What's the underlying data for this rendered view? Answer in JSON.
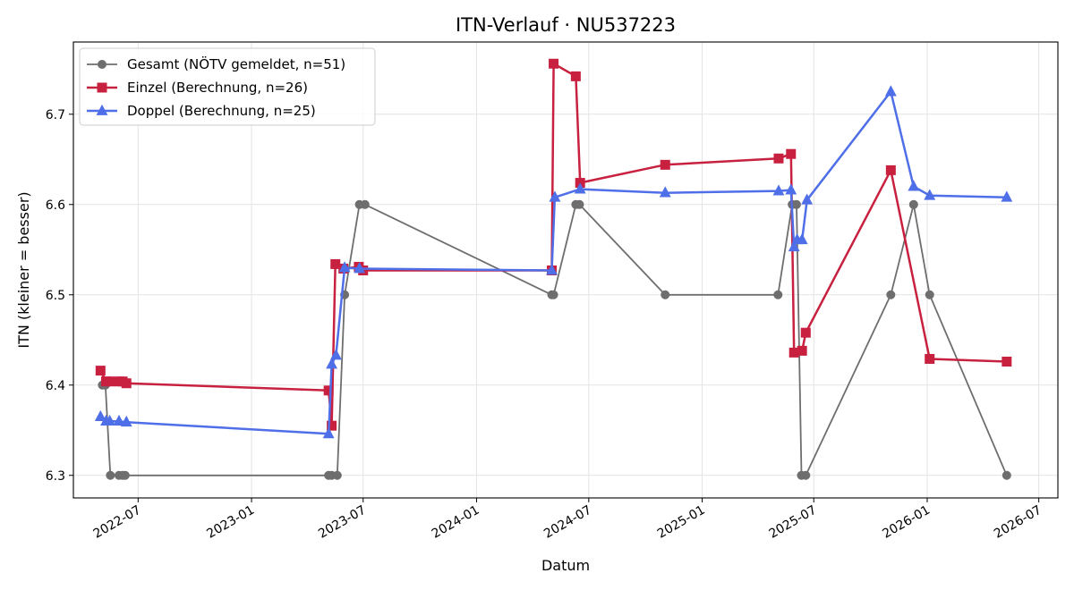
{
  "chart_data": {
    "type": "line",
    "title": "ITN-Verlauf · NU537223",
    "xlabel": "Datum",
    "ylabel": "ITN  (kleiner = besser)",
    "x_axis": "date",
    "xlim": [
      "2022-03-18",
      "2026-08-01"
    ],
    "ylim": [
      6.275,
      6.78
    ],
    "x_ticks": [
      {
        "date": "2022-07-01",
        "label": "2022-07"
      },
      {
        "date": "2023-01-01",
        "label": "2023-01"
      },
      {
        "date": "2023-07-01",
        "label": "2023-07"
      },
      {
        "date": "2024-01-01",
        "label": "2024-01"
      },
      {
        "date": "2024-07-01",
        "label": "2024-07"
      },
      {
        "date": "2025-01-01",
        "label": "2025-01"
      },
      {
        "date": "2025-07-01",
        "label": "2025-07"
      },
      {
        "date": "2026-01-01",
        "label": "2026-01"
      },
      {
        "date": "2026-07-01",
        "label": "2026-07"
      }
    ],
    "y_ticks": [
      {
        "value": 6.3,
        "label": "6.3"
      },
      {
        "value": 6.4,
        "label": "6.4"
      },
      {
        "value": 6.5,
        "label": "6.5"
      },
      {
        "value": 6.6,
        "label": "6.6"
      },
      {
        "value": 6.7,
        "label": "6.7"
      }
    ],
    "grid": true,
    "legend_position": "top-left",
    "series": [
      {
        "name": "Gesamt (NÖTV gemeldet, n=51)",
        "color": "#6e6e6e",
        "marker": "circle",
        "points": [
          [
            "2022-05-04",
            6.4
          ],
          [
            "2022-05-09",
            6.4
          ],
          [
            "2022-05-17",
            6.3
          ],
          [
            "2022-05-31",
            6.3
          ],
          [
            "2022-06-06",
            6.3
          ],
          [
            "2022-06-10",
            6.3
          ],
          [
            "2023-05-06",
            6.3
          ],
          [
            "2023-05-11",
            6.3
          ],
          [
            "2023-05-20",
            6.3
          ],
          [
            "2023-06-01",
            6.5
          ],
          [
            "2023-06-25",
            6.6
          ],
          [
            "2023-07-04",
            6.6
          ],
          [
            "2024-05-02",
            6.5
          ],
          [
            "2024-05-05",
            6.5
          ],
          [
            "2024-06-10",
            6.6
          ],
          [
            "2024-06-16",
            6.6
          ],
          [
            "2024-11-02",
            6.5
          ],
          [
            "2025-05-04",
            6.5
          ],
          [
            "2025-05-27",
            6.6
          ],
          [
            "2025-06-03",
            6.6
          ],
          [
            "2025-06-11",
            6.3
          ],
          [
            "2025-06-18",
            6.3
          ],
          [
            "2025-11-03",
            6.5
          ],
          [
            "2025-12-10",
            6.6
          ],
          [
            "2026-01-05",
            6.5
          ],
          [
            "2026-05-10",
            6.3
          ]
        ]
      },
      {
        "name": "Einzel (Berechnung, n=26)",
        "color": "#c8203f",
        "marker": "square",
        "points": [
          [
            "2022-05-01",
            6.416
          ],
          [
            "2022-05-10",
            6.404
          ],
          [
            "2022-05-16",
            6.404
          ],
          [
            "2022-05-31",
            6.404
          ],
          [
            "2022-06-06",
            6.404
          ],
          [
            "2022-06-12",
            6.402
          ],
          [
            "2023-05-06",
            6.394
          ],
          [
            "2023-05-11",
            6.355
          ],
          [
            "2023-05-17",
            6.534
          ],
          [
            "2023-05-30",
            6.529
          ],
          [
            "2023-06-24",
            6.531
          ],
          [
            "2023-07-01",
            6.527
          ],
          [
            "2024-05-02",
            6.527
          ],
          [
            "2024-05-05",
            6.756
          ],
          [
            "2024-06-10",
            6.742
          ],
          [
            "2024-06-17",
            6.624
          ],
          [
            "2024-11-02",
            6.644
          ],
          [
            "2025-05-05",
            6.651
          ],
          [
            "2025-05-25",
            6.656
          ],
          [
            "2025-05-30",
            6.436
          ],
          [
            "2025-06-12",
            6.438
          ],
          [
            "2025-06-18",
            6.458
          ],
          [
            "2025-11-03",
            6.638
          ],
          [
            "2026-01-05",
            6.429
          ],
          [
            "2026-05-10",
            6.426
          ]
        ]
      },
      {
        "name": "Doppel (Berechnung, n=25)",
        "color": "#4f6fe8",
        "marker": "triangle",
        "points": [
          [
            "2022-05-01",
            6.365
          ],
          [
            "2022-05-10",
            6.36
          ],
          [
            "2022-05-16",
            6.36
          ],
          [
            "2022-05-31",
            6.36
          ],
          [
            "2022-06-12",
            6.359
          ],
          [
            "2023-05-06",
            6.346
          ],
          [
            "2023-05-11",
            6.423
          ],
          [
            "2023-05-18",
            6.433
          ],
          [
            "2023-06-01",
            6.53
          ],
          [
            "2023-06-25",
            6.529
          ],
          [
            "2024-05-02",
            6.527
          ],
          [
            "2024-05-07",
            6.608
          ],
          [
            "2024-06-17",
            6.617
          ],
          [
            "2024-11-02",
            6.613
          ],
          [
            "2025-05-05",
            6.615
          ],
          [
            "2025-05-25",
            6.616
          ],
          [
            "2025-05-30",
            6.553
          ],
          [
            "2025-06-04",
            6.561
          ],
          [
            "2025-06-12",
            6.561
          ],
          [
            "2025-06-20",
            6.605
          ],
          [
            "2025-11-03",
            6.725
          ],
          [
            "2025-12-10",
            6.62
          ],
          [
            "2026-01-05",
            6.61
          ],
          [
            "2026-05-10",
            6.608
          ]
        ]
      }
    ]
  }
}
